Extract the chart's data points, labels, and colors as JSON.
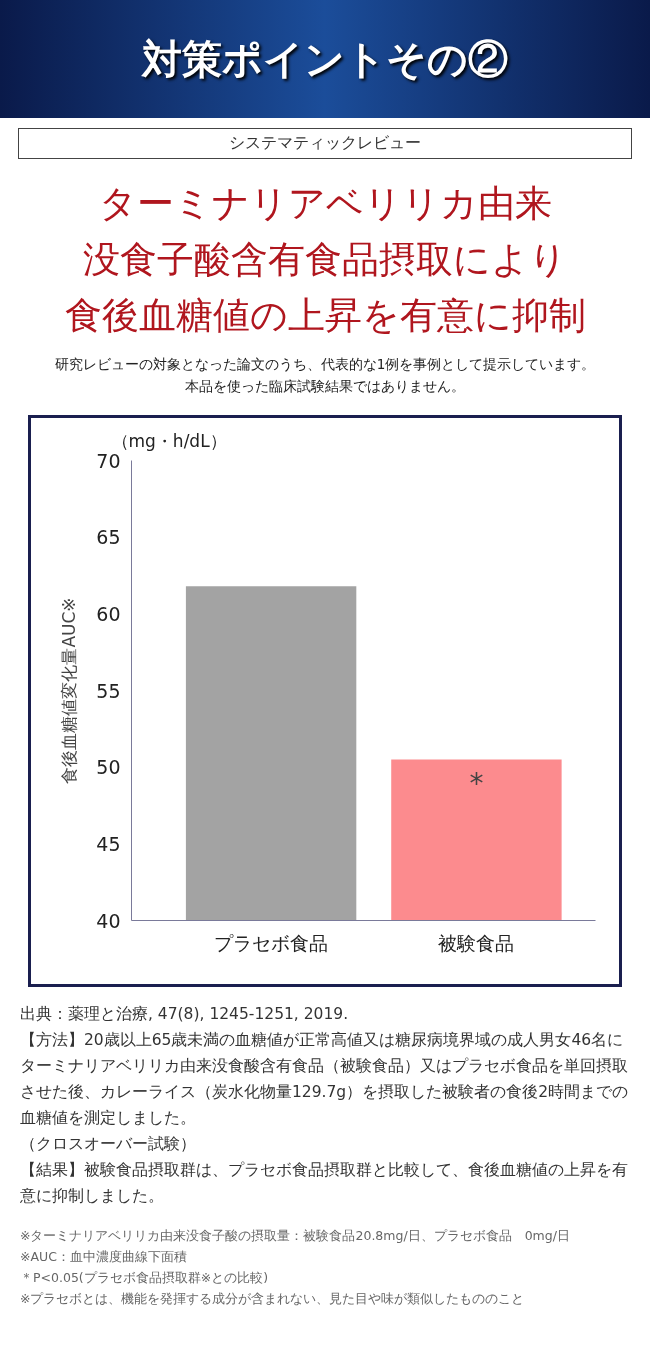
{
  "chart_data": {
    "type": "bar",
    "title": "対策ポイントその②",
    "subtitle": "システマティックレビュー",
    "ylabel": "食後血糖値変化量AUC※",
    "categories": [
      "プラセボ食品",
      "被験食品"
    ],
    "values": [
      61.8,
      50.5
    ],
    "colors": [
      "#a3a3a3",
      "#fc8b8e"
    ],
    "ylim": [
      40,
      70
    ],
    "yticks": [
      40,
      45,
      50,
      55,
      60,
      65,
      70
    ],
    "grid": false,
    "annotations": [
      "ターミナリアベリリカ由来",
      "没食子酸含有食品摂取により",
      "食後血糖値の上昇を有意に抑制",
      "研究レビューの対象となった論文のうち、代表的な1例を事例として提示しています。",
      "本品を使った臨床試験結果ではありません。",
      "（mg・h/dL）",
      "*",
      "出典：薬理と治療, 47(8), 1245-1251, 2019.",
      "【方法】20歳以上65歳未満の血糖値が正常高値又は糖尿病境界域の成人男女46名にターミナリアベリリカ由来没食酸含有食品（被験食品）又はプラセボ食品を単回摂取させた後、カレーライス（炭水化物量129.7g）を摂取した被験者の食後2時間までの血糖値を測定しました。",
      "（クロスオーバー試験）",
      "【結果】被験食品摂取群は、プラセボ食品摂取群と比較して、食後血糖値の上昇を有意に抑制しました。",
      "※ターミナリアベリリカ由来没食子酸の摂取量：被験食品20.8mg/日、プラセボ食品　0mg/日",
      "※AUC：血中濃度曲線下面積",
      "＊P<0.05(プラセボ食品摂取群※との比較)",
      "※プラセボとは、機能を発揮する成分が含まれない、見た目や味が類似したもののこと"
    ]
  }
}
